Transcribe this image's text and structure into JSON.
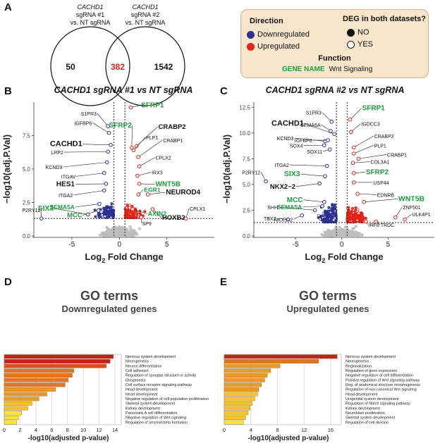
{
  "panels": {
    "A": {
      "letter": "A",
      "set1_gene": "CACHD1",
      "set1_line2": "sgRNA #1",
      "set1_line3": "vs. NT sgRNA",
      "set2_gene": "CACHD1",
      "set2_line2": "sgRNA #2",
      "set2_line3": "vs. NT sgRNA",
      "only1": "50",
      "both": "382",
      "only2": "1542"
    },
    "legend": {
      "direction_title": "Direction",
      "down_label": "Downregulated",
      "up_label": "Upregulated",
      "deg_title": "DEG in both datasets?",
      "no_label": "NO",
      "yes_label": "YES",
      "function_title": "Function",
      "gene_name_label": "GENE NAME",
      "wnt_label": "Wnt Signaling"
    },
    "B": {
      "letter": "B",
      "title": "CACHD1 sgRNA #1 vs NT sgRNA"
    },
    "C": {
      "letter": "C",
      "title": "CACHD1 sgRNA #2 vs NT sgRNA"
    },
    "D": {
      "letter": "D",
      "title": "GO terms",
      "subtitle": "Downregulated genes"
    },
    "E": {
      "letter": "E",
      "title": "GO terms",
      "subtitle": "Upregulated genes"
    }
  },
  "colors": {
    "down": "#2e3192",
    "up": "#e2231a",
    "ns": "#bdbdbd",
    "wnt": "#1a9e3f",
    "venn_red": "#e2231a",
    "legend_bg": "#f8e6cc"
  },
  "chart_data": [
    {
      "id": "volcano1",
      "type": "scatter",
      "title": "CACHD1 sgRNA #1 vs NT sgRNA",
      "xlabel_main": "Log",
      "xlabel_sub": "2",
      "xlabel_tail": " Fold Change",
      "ylabel": "−log10(adj.P.Val)",
      "xlim": [
        -9,
        10
      ],
      "ylim": [
        0,
        10
      ],
      "xticks": [
        -5,
        0,
        5
      ],
      "yticks": [
        0.0,
        2.5,
        5.0,
        7.5
      ],
      "ytick_labels": [
        "0.0",
        "2.5",
        "5.0",
        "7.5"
      ],
      "xtick_labels": [
        "-5",
        "0",
        "5"
      ],
      "vlines": [
        -0.58,
        0.58
      ],
      "hline": 1.3,
      "labels": [
        {
          "text": "SFRP1",
          "x": 1.2,
          "y": 9.6,
          "lx": 2.3,
          "ly": 9.6,
          "wnt": true,
          "size": 10,
          "dir": "up"
        },
        {
          "text": "SFRP2",
          "x": 1.3,
          "y": 6.6,
          "lx": 1.3,
          "ly": 8.1,
          "wnt": true,
          "size": 10,
          "dir": "up"
        },
        {
          "text": "CRABP2",
          "x": 1.8,
          "y": 6.7,
          "lx": 4.1,
          "ly": 8.0,
          "wnt": false,
          "size": 9.5,
          "dir": "up"
        },
        {
          "text": "PLP1",
          "x": 1.5,
          "y": 6.4,
          "lx": 2.8,
          "ly": 7.2,
          "wnt": false,
          "size": 7,
          "dir": "up"
        },
        {
          "text": "CRABP1",
          "x": 2.0,
          "y": 5.9,
          "lx": 4.6,
          "ly": 7.0,
          "wnt": false,
          "size": 7,
          "dir": "up"
        },
        {
          "text": "CPLX2",
          "x": 2.1,
          "y": 5.2,
          "lx": 3.8,
          "ly": 5.7,
          "wnt": false,
          "size": 7,
          "dir": "up"
        },
        {
          "text": "IRX3",
          "x": 1.9,
          "y": 4.5,
          "lx": 3.4,
          "ly": 4.6,
          "wnt": false,
          "size": 7,
          "dir": "up"
        },
        {
          "text": "WNT5B",
          "x": 2.1,
          "y": 3.9,
          "lx": 3.8,
          "ly": 3.7,
          "wnt": true,
          "size": 10,
          "dir": "up"
        },
        {
          "text": "EGR1",
          "x": 2.0,
          "y": 3.1,
          "lx": 2.6,
          "ly": 3.3,
          "wnt": true,
          "size": 8.5,
          "dir": "up"
        },
        {
          "text": "NEUROD4",
          "x": 3.0,
          "y": 3.1,
          "lx": 4.9,
          "ly": 3.1,
          "wnt": false,
          "size": 10,
          "dir": "up"
        },
        {
          "text": "AXIN2",
          "x": 1.4,
          "y": 2.0,
          "lx": 3.0,
          "ly": 1.5,
          "wnt": true,
          "size": 9,
          "dir": "up"
        },
        {
          "text": "HOXB2",
          "x": 3.5,
          "y": 2.0,
          "lx": 4.5,
          "ly": 1.2,
          "wnt": false,
          "size": 9.5,
          "dir": "up"
        },
        {
          "text": "CPLX1",
          "x": 7.0,
          "y": 1.3,
          "lx": 7.4,
          "ly": 1.9,
          "wnt": false,
          "size": 7,
          "dir": "up"
        },
        {
          "text": "SP9",
          "x": 2.3,
          "y": 1.4,
          "lx": 2.4,
          "ly": 0.8,
          "wnt": false,
          "size": 7,
          "dir": "up"
        },
        {
          "text": "S1PR3",
          "x": -1.2,
          "y": 8.2,
          "lx": -2.4,
          "ly": 9.0,
          "wnt": false,
          "size": 7,
          "dir": "down"
        },
        {
          "text": "IGFBP6",
          "x": -1.1,
          "y": 7.7,
          "lx": -2.9,
          "ly": 8.3,
          "wnt": false,
          "size": 7,
          "dir": "down"
        },
        {
          "text": "CACHD1",
          "x": -0.9,
          "y": 6.8,
          "lx": -3.9,
          "ly": 6.7,
          "wnt": false,
          "size": 11,
          "bold": true,
          "dir": "down"
        },
        {
          "text": "LRP2",
          "x": -1.2,
          "y": 6.3,
          "lx": -5.9,
          "ly": 6.1,
          "wnt": false,
          "size": 7,
          "dir": "down"
        },
        {
          "text": "KCND3",
          "x": -1.3,
          "y": 5.5,
          "lx": -6.0,
          "ly": 5.0,
          "wnt": false,
          "size": 7,
          "dir": "down"
        },
        {
          "text": "ITGAV",
          "x": -1.6,
          "y": 4.7,
          "lx": -4.6,
          "ly": 4.3,
          "wnt": false,
          "size": 7,
          "dir": "down"
        },
        {
          "text": "HES1",
          "x": -1.4,
          "y": 3.9,
          "lx": -4.7,
          "ly": 3.7,
          "wnt": false,
          "size": 10,
          "dir": "down"
        },
        {
          "text": "ITGA2",
          "x": -1.6,
          "y": 3.4,
          "lx": -4.9,
          "ly": 2.9,
          "wnt": false,
          "size": 7,
          "dir": "down"
        },
        {
          "text": "SEMA5A",
          "x": -2.1,
          "y": 2.4,
          "lx": -4.7,
          "ly": 2.0,
          "wnt": true,
          "size": 8.5,
          "dir": "down"
        },
        {
          "text": "MCC",
          "x": -2.2,
          "y": 1.9,
          "lx": -3.9,
          "ly": 1.4,
          "wnt": true,
          "size": 9.5,
          "dir": "down"
        },
        {
          "text": "SIX3",
          "x": -3.3,
          "y": 1.6,
          "lx": -6.9,
          "ly": 1.9,
          "wnt": true,
          "size": 10.5,
          "dir": "down"
        },
        {
          "text": "P2RY12",
          "x": -8.2,
          "y": 1.3,
          "lx": -8.3,
          "ly": 1.8,
          "wnt": false,
          "size": 7,
          "dir": "down"
        }
      ]
    },
    {
      "id": "volcano2",
      "type": "scatter",
      "title": "CACHD1 sgRNA #2 vs NT sgRNA",
      "xlabel_main": "Log",
      "xlabel_sub": "2",
      "xlabel_tail": " Fold Change",
      "ylabel": "−log10(adj.P.Val)",
      "xlim": [
        -9.5,
        10
      ],
      "ylim": [
        0,
        13
      ],
      "xticks": [
        -5,
        0,
        5
      ],
      "yticks": [
        0.0,
        2.5,
        5.0,
        7.5,
        10.0,
        12.5
      ],
      "ytick_labels": [
        "0.0",
        "2.5",
        "5.0",
        "7.5",
        "10.0",
        "12.5"
      ],
      "xtick_labels": [
        "-5",
        "0",
        "5"
      ],
      "vlines": [
        -0.58,
        0.58
      ],
      "hline": 1.3,
      "labels": [
        {
          "text": "SFRP1",
          "x": 0.9,
          "y": 11.3,
          "lx": 2.2,
          "ly": 12.2,
          "wnt": true,
          "size": 10,
          "dir": "up"
        },
        {
          "text": "IGDCC3",
          "x": 1.0,
          "y": 10.1,
          "lx": 2.1,
          "ly": 10.7,
          "wnt": false,
          "size": 7,
          "dir": "up"
        },
        {
          "text": "CRABP2",
          "x": 1.3,
          "y": 8.6,
          "lx": 3.5,
          "ly": 9.5,
          "wnt": false,
          "size": 7,
          "dir": "up"
        },
        {
          "text": "PLP1",
          "x": 1.3,
          "y": 8.0,
          "lx": 3.5,
          "ly": 8.6,
          "wnt": false,
          "size": 7,
          "dir": "up"
        },
        {
          "text": "CRABP1",
          "x": 1.8,
          "y": 7.5,
          "lx": 4.9,
          "ly": 7.7,
          "wnt": false,
          "size": 7,
          "dir": "up"
        },
        {
          "text": "COL3A1",
          "x": 1.2,
          "y": 7.1,
          "lx": 3.1,
          "ly": 7.0,
          "wnt": false,
          "size": 7,
          "dir": "up"
        },
        {
          "text": "SFRP2",
          "x": 1.3,
          "y": 6.1,
          "lx": 2.6,
          "ly": 6.0,
          "wnt": true,
          "size": 10,
          "dir": "up"
        },
        {
          "text": "USP44",
          "x": 1.3,
          "y": 5.2,
          "lx": 3.4,
          "ly": 5.0,
          "wnt": false,
          "size": 7,
          "dir": "up"
        },
        {
          "text": "EDNRB",
          "x": 1.7,
          "y": 4.1,
          "lx": 3.8,
          "ly": 3.8,
          "wnt": false,
          "size": 7,
          "dir": "up"
        },
        {
          "text": "WNT5B",
          "x": 2.4,
          "y": 3.3,
          "lx": 6.1,
          "ly": 3.4,
          "wnt": true,
          "size": 10.5,
          "dir": "up"
        },
        {
          "text": "ZNF501",
          "x": 5.8,
          "y": 1.8,
          "lx": 6.6,
          "ly": 2.6,
          "wnt": false,
          "size": 7,
          "dir": "up"
        },
        {
          "text": "ULK4P1",
          "x": 6.8,
          "y": 1.6,
          "lx": 7.6,
          "ly": 1.9,
          "wnt": false,
          "size": 7,
          "dir": "up"
        },
        {
          "text": "IRF8",
          "x": 2.6,
          "y": 1.4,
          "lx": 2.9,
          "ly": 0.9,
          "wnt": false,
          "size": 7,
          "dir": "up"
        },
        {
          "text": "TRDC",
          "x": 3.7,
          "y": 1.4,
          "lx": 4.2,
          "ly": 0.9,
          "wnt": false,
          "size": 7,
          "dir": "up"
        },
        {
          "text": "S1PR3",
          "x": -1.1,
          "y": 11.1,
          "lx": -2.2,
          "ly": 11.8,
          "wnt": false,
          "size": 7,
          "dir": "down"
        },
        {
          "text": "SEMA6A",
          "x": -1.2,
          "y": 10.2,
          "lx": -2.3,
          "ly": 10.6,
          "wnt": false,
          "size": 7,
          "dir": "down"
        },
        {
          "text": "CACHD1",
          "x": -0.8,
          "y": 9.9,
          "lx": -4.1,
          "ly": 10.7,
          "wnt": false,
          "size": 11,
          "bold": true,
          "dir": "down"
        },
        {
          "text": "KCND3",
          "x": -1.8,
          "y": 9.2,
          "lx": -5.2,
          "ly": 9.3,
          "wnt": false,
          "size": 7,
          "dir": "down"
        },
        {
          "text": "IGFBP6",
          "x": -1.5,
          "y": 9.3,
          "lx": -3.2,
          "ly": 9.1,
          "wnt": false,
          "size": 7,
          "dir": "down"
        },
        {
          "text": "SOX4",
          "x": -1.9,
          "y": 8.8,
          "lx": -4.2,
          "ly": 8.6,
          "wnt": false,
          "size": 7,
          "dir": "down"
        },
        {
          "text": "SOX11",
          "x": -1.3,
          "y": 8.4,
          "lx": -2.1,
          "ly": 8.0,
          "wnt": false,
          "size": 7,
          "dir": "down"
        },
        {
          "text": "ITGA2",
          "x": -1.6,
          "y": 6.8,
          "lx": -5.7,
          "ly": 6.7,
          "wnt": false,
          "size": 7,
          "dir": "down"
        },
        {
          "text": "SIX3",
          "x": -1.8,
          "y": 5.8,
          "lx": -4.5,
          "ly": 5.8,
          "wnt": true,
          "size": 10.5,
          "dir": "down"
        },
        {
          "text": "NKX2−2",
          "x": -2.4,
          "y": 5.1,
          "lx": -5.0,
          "ly": 4.6,
          "wnt": false,
          "size": 9.5,
          "dir": "down"
        },
        {
          "text": "P2RY12",
          "x": -8.2,
          "y": 5.3,
          "lx": -8.8,
          "ly": 6.0,
          "wnt": false,
          "size": 7,
          "dir": "down"
        },
        {
          "text": "MCC",
          "x": -1.9,
          "y": 3.3,
          "lx": -4.2,
          "ly": 3.3,
          "wnt": true,
          "size": 10,
          "dir": "down"
        },
        {
          "text": "SEMA5A",
          "x": -2.1,
          "y": 2.9,
          "lx": -4.3,
          "ly": 2.6,
          "wnt": true,
          "size": 8.5,
          "dir": "down"
        },
        {
          "text": "SHH",
          "x": -2.9,
          "y": 2.5,
          "lx": -6.9,
          "ly": 2.6,
          "wnt": false,
          "size": 7,
          "dir": "down"
        },
        {
          "text": "TBX2",
          "x": -5.8,
          "y": 1.6,
          "lx": -7.1,
          "ly": 1.5,
          "wnt": false,
          "size": 7,
          "dir": "down"
        },
        {
          "text": "NKX3−2",
          "x": -4.3,
          "y": 2.0,
          "lx": -5.3,
          "ly": 1.4,
          "wnt": false,
          "size": 7,
          "dir": "down"
        }
      ]
    },
    {
      "id": "go_down",
      "type": "bar",
      "orientation": "horizontal",
      "title": "GO terms",
      "subtitle": "Downregulated genes",
      "xlabel": "-log10(adjusted p-value)",
      "xlim": [
        0,
        14.8
      ],
      "xticks": [
        0,
        2,
        4,
        6,
        8,
        10,
        12,
        14
      ],
      "categories": [
        "Nervous system development",
        "Neurogenesis",
        "Neuron differentiation",
        "Cell adhesion",
        "Regulation of synapse structure or activity",
        "Gliogenesis",
        "Cell surface receptor signaling pathway",
        "Head development",
        "Heart development",
        "Negative regulation of cell population proliferation",
        "Skeletal system development",
        "Kidney development",
        "Pancreatic A cell differentiation",
        "Negative regulation of Wnt signaling",
        "Regulation of amyloid-beta formation"
      ],
      "values": [
        13.8,
        13.4,
        12.9,
        8.8,
        8.6,
        8.1,
        7.7,
        6.5,
        5.4,
        4.4,
        3.5,
        3.0,
        2.2,
        1.8,
        1.6
      ]
    },
    {
      "id": "go_up",
      "type": "bar",
      "orientation": "horizontal",
      "title": "GO terms",
      "subtitle": "Upregulated genes",
      "xlabel": "-log10(adjusted p-value)",
      "xlim": [
        0,
        17.6
      ],
      "xticks": [
        0,
        4,
        8,
        12,
        16
      ],
      "categories": [
        "Nervous system development",
        "Neurogenesis",
        "Regionalization",
        "Regulation of gene expression",
        "Negative regulation of cell differentiation",
        "Positive regulation of Wnt signaling pathway",
        "Reg. of anatomical structure morphogenesis",
        "Regulation of non-canonical Wnt signaling",
        "Head development",
        "Urogenital system development",
        "Regulation of Notch signaling pathway",
        "Kidney development",
        "Neuroblast proliferation",
        "Skeletal system development",
        "Regulation of cell division"
      ],
      "values": [
        17.0,
        14.2,
        8.4,
        7.0,
        6.5,
        6.1,
        5.6,
        5.2,
        5.0,
        4.6,
        4.2,
        3.9,
        3.6,
        3.2,
        2.9
      ]
    }
  ]
}
